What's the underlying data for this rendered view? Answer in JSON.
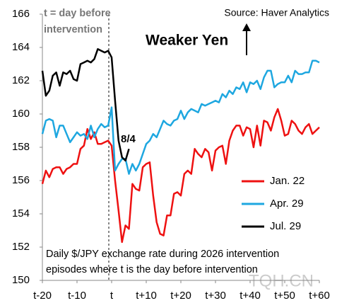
{
  "chart_data": {
    "type": "line",
    "annotation_lines": [
      "t = day before",
      "intervention"
    ],
    "source": "Source: Haver Analytics",
    "arrow_label": "Weaker Yen",
    "point_label": "8/4",
    "caption_lines": [
      "Daily $/JPY exchange rate during 2026 intervention",
      "episodes where t is the day before intervention"
    ],
    "watermark": "TQH.CN",
    "x": [
      -20,
      -19,
      -18,
      -17,
      -16,
      -15,
      -14,
      -13,
      -12,
      -11,
      -10,
      -9,
      -8,
      -7,
      -6,
      -5,
      -4,
      -3,
      -2,
      -1,
      0,
      1,
      2,
      3,
      4,
      5,
      6,
      7,
      8,
      9,
      10,
      11,
      12,
      13,
      14,
      15,
      16,
      17,
      18,
      19,
      20,
      21,
      22,
      23,
      24,
      25,
      26,
      27,
      28,
      29,
      30,
      31,
      32,
      33,
      34,
      35,
      36,
      37,
      38,
      39,
      40,
      41,
      42,
      43,
      44,
      45,
      46,
      47,
      48,
      49,
      50,
      51,
      52,
      53,
      54,
      55,
      56,
      57,
      58,
      59,
      60
    ],
    "series": [
      {
        "name": "Jan. 22",
        "color": "#ee1111",
        "values": [
          155.8,
          156.6,
          156.2,
          156.7,
          156.8,
          156.8,
          156.4,
          156.7,
          156.8,
          157.0,
          157.0,
          157.9,
          158.1,
          159.1,
          158.5,
          158.9,
          158.2,
          158.2,
          158.3,
          158.4,
          158.1,
          156.0,
          154.2,
          152.3,
          153.3,
          153.1,
          155.8,
          155.5,
          155.4,
          156.8,
          157.0,
          157.1,
          155.1,
          153.5,
          152.8,
          152.7,
          153.9,
          153.9,
          155.2,
          155.3,
          155.1,
          156.4,
          156.6,
          156.4,
          157.9,
          157.6,
          157.4,
          157.9,
          157.7,
          156.6,
          157.8,
          158.0,
          158.1,
          157.0,
          158.4,
          159.0,
          159.3,
          159.3,
          158.7,
          159.2,
          159.1,
          158.0,
          159.3,
          158.1,
          159.6,
          159.5,
          159.0,
          159.8,
          160.3,
          159.6,
          158.7,
          158.8,
          159.6,
          159.4,
          159.0,
          158.8,
          159.2,
          159.4,
          158.8,
          159.0,
          159.2
        ]
      },
      {
        "name": "Apr. 29",
        "color": "#1ea7e0",
        "values": [
          158.8,
          159.6,
          159.7,
          159.6,
          158.6,
          159.3,
          159.3,
          158.8,
          158.3,
          158.6,
          158.9,
          158.7,
          158.8,
          158.5,
          159.3,
          158.6,
          159.1,
          159.4,
          159.2,
          159.3,
          160.4,
          156.6,
          157.0,
          157.3,
          157.3,
          156.4,
          157.0,
          156.6,
          157.0,
          157.6,
          158.2,
          158.4,
          158.8,
          158.6,
          159.1,
          159.6,
          159.4,
          159.3,
          159.6,
          159.7,
          160.2,
          159.7,
          160.1,
          160.3,
          160.2,
          160.1,
          160.6,
          160.5,
          160.6,
          160.7,
          160.8,
          160.7,
          161.2,
          161.0,
          161.4,
          161.2,
          161.6,
          161.5,
          161.9,
          161.3,
          161.9,
          161.8,
          162.0,
          161.5,
          162.2,
          162.6,
          162.6,
          161.6,
          161.8,
          161.9,
          161.9,
          162.3,
          161.9,
          162.6,
          162.4,
          162.4,
          162.5,
          162.5,
          163.2,
          163.2,
          163.1
        ]
      },
      {
        "name": "Jul. 29",
        "color": "#000000",
        "values": [
          162.6,
          161.1,
          161.4,
          162.3,
          162.5,
          161.7,
          162.5,
          162.4,
          162.6,
          162.1,
          162.0,
          163.0,
          163.1,
          163.2,
          163.1,
          163.3,
          163.9,
          163.8,
          163.7,
          163.8,
          163.4,
          160.8,
          158.4,
          157.4,
          157.2,
          157.9,
          null,
          null,
          null,
          null,
          null,
          null,
          null,
          null,
          null,
          null,
          null,
          null,
          null,
          null,
          null,
          null,
          null,
          null,
          null,
          null,
          null,
          null,
          null,
          null,
          null,
          null,
          null,
          null,
          null,
          null,
          null,
          null,
          null,
          null,
          null,
          null,
          null,
          null,
          null,
          null,
          null,
          null,
          null,
          null,
          null,
          null,
          null,
          null,
          null,
          null,
          null,
          null,
          null,
          null,
          null
        ]
      }
    ],
    "xlim": [
      -20,
      60
    ],
    "xticks": [
      {
        "value": -20,
        "label": "t-20"
      },
      {
        "value": -10,
        "label": "t-10"
      },
      {
        "value": 0,
        "label": "t"
      },
      {
        "value": 10,
        "label": "t+10"
      },
      {
        "value": 20,
        "label": "t+20"
      },
      {
        "value": 30,
        "label": "t+30"
      },
      {
        "value": 40,
        "label": "t+40"
      },
      {
        "value": 50,
        "label": "t+50"
      },
      {
        "value": 60,
        "label": "t+60"
      }
    ],
    "ylim": [
      150,
      166
    ],
    "yticks": [
      150,
      152,
      154,
      156,
      158,
      160,
      162,
      164,
      166
    ],
    "grid": false
  }
}
